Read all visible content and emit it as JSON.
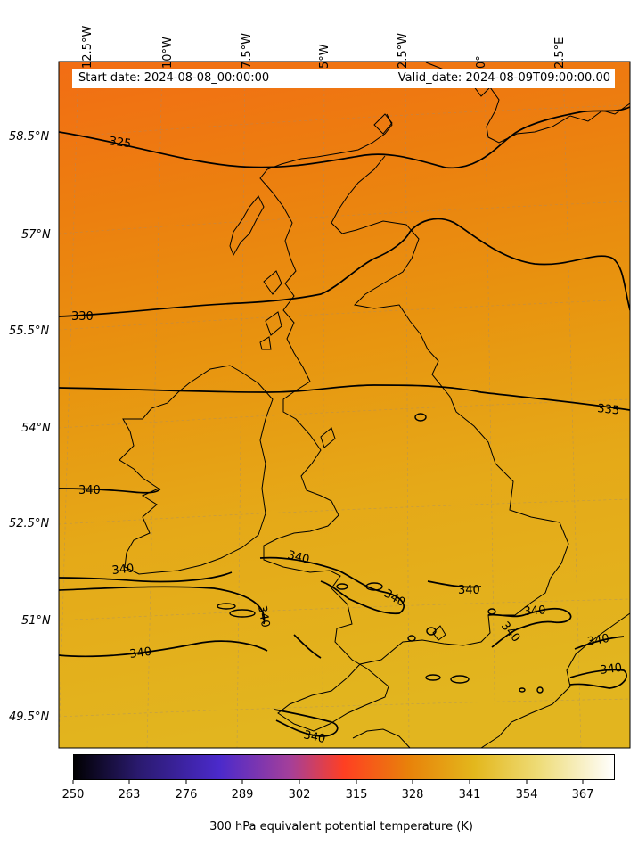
{
  "header": {
    "start_date": "Start date: 2024-08-08_00:00:00",
    "valid_date": "Valid_date: 2024-08-09T09:00:00.00"
  },
  "longitude_labels": [
    "12.5°W",
    "10°W",
    "7.5°W",
    "5°W",
    "2.5°W",
    "0°",
    "2.5°E"
  ],
  "latitude_labels": [
    "58.5°N",
    "57°N",
    "55.5°N",
    "54°N",
    "52.5°N",
    "51°N",
    "49.5°N"
  ],
  "contour_labels": [
    "325",
    "330",
    "335",
    "340",
    "340",
    "340",
    "340",
    "340",
    "340",
    "340",
    "340",
    "340",
    "340",
    "340",
    "340"
  ],
  "colorbar": {
    "title": "300 hPa equivalent potential temperature (K)",
    "ticks": [
      "250",
      "263",
      "276",
      "289",
      "302",
      "315",
      "328",
      "341",
      "354",
      "367"
    ],
    "colormap": [
      "#000000",
      "#2a1a6e",
      "#4b2acb",
      "#a43f9a",
      "#ff3f22",
      "#e8820a",
      "#e3b71c",
      "#eedc78",
      "#ffffff"
    ]
  },
  "colors": {
    "field_north": "#f26d14",
    "field_mid": "#e89117",
    "field_south": "#e2b51f",
    "contour": "#000000"
  }
}
